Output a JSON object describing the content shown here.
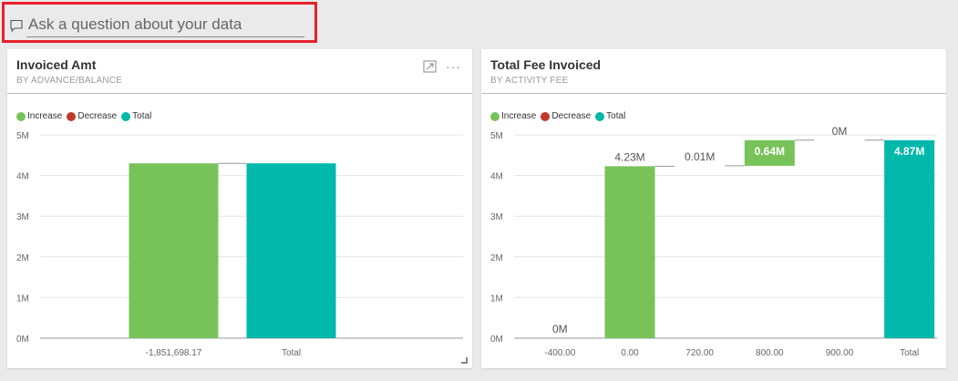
{
  "qa": {
    "placeholder": "Ask a question about your data"
  },
  "colors": {
    "increase": "#77c35a",
    "decrease": "#c0392b",
    "total": "#01b8aa",
    "qa_highlight": "#e8202a"
  },
  "tiles": [
    {
      "title": "Invoiced Amt",
      "subtitle": "BY ADVANCE/BALANCE",
      "legend": [
        "Increase",
        "Decrease",
        "Total"
      ],
      "actions": {
        "focus_icon": "focus-mode-icon",
        "more_icon": "more-options-icon",
        "more_label": "···"
      }
    },
    {
      "title": "Total Fee Invoiced",
      "subtitle": "BY ACTIVITY FEE",
      "legend": [
        "Increase",
        "Decrease",
        "Total"
      ]
    }
  ],
  "chart_data": [
    {
      "type": "bar",
      "subtype": "waterfall",
      "title": "Invoiced Amt",
      "subtitle": "BY ADVANCE/BALANCE",
      "categories": [
        "-1,851,698.17",
        "Total"
      ],
      "y_ticks": [
        "0M",
        "1M",
        "2M",
        "3M",
        "4M",
        "5M"
      ],
      "ylim": [
        0,
        5
      ],
      "unit": "M",
      "bars": [
        {
          "category": "-1,851,698.17",
          "kind": "increase",
          "start": 0,
          "end": 4.3
        },
        {
          "category": "Total",
          "kind": "total",
          "start": 0,
          "end": 4.3
        }
      ],
      "data_labels": [],
      "legend": [
        "Increase",
        "Decrease",
        "Total"
      ],
      "legend_position": "top-left",
      "grid": true
    },
    {
      "type": "bar",
      "subtype": "waterfall",
      "title": "Total Fee Invoiced",
      "subtitle": "BY ACTIVITY FEE",
      "categories": [
        "-400.00",
        "0.00",
        "720.00",
        "800.00",
        "900.00",
        "Total"
      ],
      "y_ticks": [
        "0M",
        "1M",
        "2M",
        "3M",
        "4M",
        "5M"
      ],
      "ylim": [
        0,
        5
      ],
      "unit": "M",
      "bars": [
        {
          "category": "-400.00",
          "kind": "increase",
          "start": 0,
          "end": 0,
          "label": "0M"
        },
        {
          "category": "0.00",
          "kind": "increase",
          "start": 0,
          "end": 4.23,
          "label": "4.23M"
        },
        {
          "category": "720.00",
          "kind": "increase",
          "start": 4.23,
          "end": 4.24,
          "label": "0.01M"
        },
        {
          "category": "800.00",
          "kind": "increase",
          "start": 4.24,
          "end": 4.87,
          "label": "0.64M"
        },
        {
          "category": "900.00",
          "kind": "increase",
          "start": 4.87,
          "end": 4.87,
          "label": "0M"
        },
        {
          "category": "Total",
          "kind": "total",
          "start": 0,
          "end": 4.87,
          "label": "4.87M"
        }
      ],
      "legend": [
        "Increase",
        "Decrease",
        "Total"
      ],
      "legend_position": "top-left",
      "grid": true
    }
  ]
}
